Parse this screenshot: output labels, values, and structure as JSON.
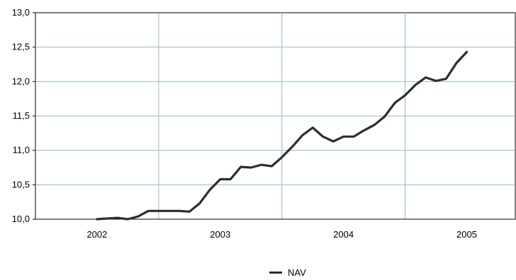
{
  "chart_data": {
    "type": "line",
    "title": "",
    "xlabel": "",
    "ylabel": "",
    "xlim": [
      2001.5,
      2005.4
    ],
    "ylim": [
      10.0,
      13.0
    ],
    "grid": true,
    "legend_position": "bottom",
    "x_ticks": [
      2002,
      2003,
      2004,
      2005
    ],
    "x_tick_labels": [
      "2002",
      "2003",
      "2004",
      "2005"
    ],
    "y_ticks": [
      10.0,
      10.5,
      11.0,
      11.5,
      12.0,
      12.5,
      13.0
    ],
    "y_tick_labels": [
      "10,0",
      "10,5",
      "11,0",
      "11,5",
      "12,0",
      "12,5",
      "13,0"
    ],
    "series": [
      {
        "name": "NAV",
        "color": "#2d2d2d",
        "x": [
          2002.0,
          2002.083,
          2002.167,
          2002.25,
          2002.333,
          2002.417,
          2002.5,
          2002.583,
          2002.667,
          2002.75,
          2002.833,
          2002.917,
          2003.0,
          2003.083,
          2003.167,
          2003.25,
          2003.333,
          2003.417,
          2003.5,
          2003.583,
          2003.667,
          2003.75,
          2003.833,
          2003.917,
          2004.0,
          2004.083,
          2004.167,
          2004.25,
          2004.333,
          2004.417,
          2004.5,
          2004.583,
          2004.667,
          2004.75,
          2004.833,
          2004.917,
          2005.0
        ],
        "values": [
          10.0,
          10.01,
          10.02,
          10.0,
          10.04,
          10.12,
          10.12,
          10.12,
          10.12,
          10.11,
          10.23,
          10.43,
          10.58,
          10.58,
          10.76,
          10.75,
          10.79,
          10.77,
          10.9,
          11.05,
          11.22,
          11.33,
          11.2,
          11.13,
          11.2,
          11.2,
          11.29,
          11.37,
          11.49,
          11.69,
          11.8,
          11.95,
          12.06,
          12.01,
          12.04,
          12.27,
          12.43
        ]
      }
    ]
  }
}
